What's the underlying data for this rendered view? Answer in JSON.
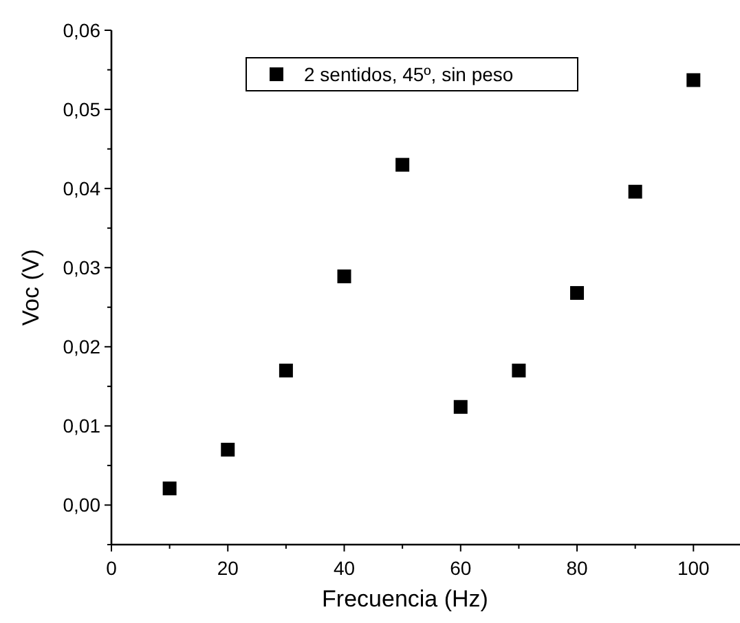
{
  "chart_data": {
    "type": "scatter",
    "xlabel": "Frecuencia (Hz)",
    "ylabel": "Voc (V)",
    "x": [
      10,
      20,
      30,
      40,
      50,
      60,
      70,
      80,
      90,
      100
    ],
    "series": [
      {
        "name": "2 sentidos, 45º, sin peso",
        "color": "#000000",
        "values": [
          0.0021,
          0.007,
          0.017,
          0.0289,
          0.043,
          0.0124,
          0.017,
          0.0268,
          0.0396,
          0.0537
        ]
      }
    ],
    "xlim": [
      0,
      108
    ],
    "ylim": [
      -0.005,
      0.06
    ],
    "xticks": [
      0,
      20,
      40,
      60,
      80,
      100
    ],
    "yticks": [
      {
        "value": 0,
        "label": "0,00"
      },
      {
        "value": 0.01,
        "label": "0,01"
      },
      {
        "value": 0.02,
        "label": "0,02"
      },
      {
        "value": 0.03,
        "label": "0,03"
      },
      {
        "value": 0.04,
        "label": "0,04"
      },
      {
        "value": 0.05,
        "label": "0,05"
      },
      {
        "value": 0.06,
        "label": "0,06"
      }
    ],
    "marker": "square",
    "legend": "top",
    "grid": false
  }
}
